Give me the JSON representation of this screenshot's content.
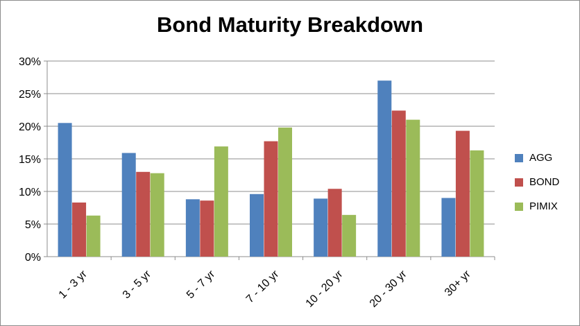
{
  "chart_data": {
    "type": "bar",
    "title": "Bond Maturity Breakdown",
    "xlabel": "",
    "ylabel": "",
    "categories": [
      "1 - 3 yr",
      "3 - 5 yr",
      "5 - 7 yr",
      "7 - 10 yr",
      "10 - 20 yr",
      "20 - 30 yr",
      "30+ yr"
    ],
    "series": [
      {
        "name": "AGG",
        "color": "#4F81BD",
        "values": [
          20.5,
          15.9,
          8.8,
          9.6,
          8.9,
          27.0,
          9.0
        ]
      },
      {
        "name": "BOND",
        "color": "#C0504D",
        "values": [
          8.3,
          13.0,
          8.6,
          17.7,
          10.4,
          22.4,
          19.3
        ]
      },
      {
        "name": "PIMIX",
        "color": "#9BBB59",
        "values": [
          6.3,
          12.8,
          16.9,
          19.8,
          6.4,
          21.0,
          16.3
        ]
      }
    ],
    "ylim": [
      0,
      30
    ],
    "yticks": [
      "0%",
      "5%",
      "10%",
      "15%",
      "20%",
      "25%",
      "30%"
    ],
    "ytick_values": [
      0,
      5,
      10,
      15,
      20,
      25,
      30
    ],
    "grid": true,
    "legend_position": "right"
  }
}
